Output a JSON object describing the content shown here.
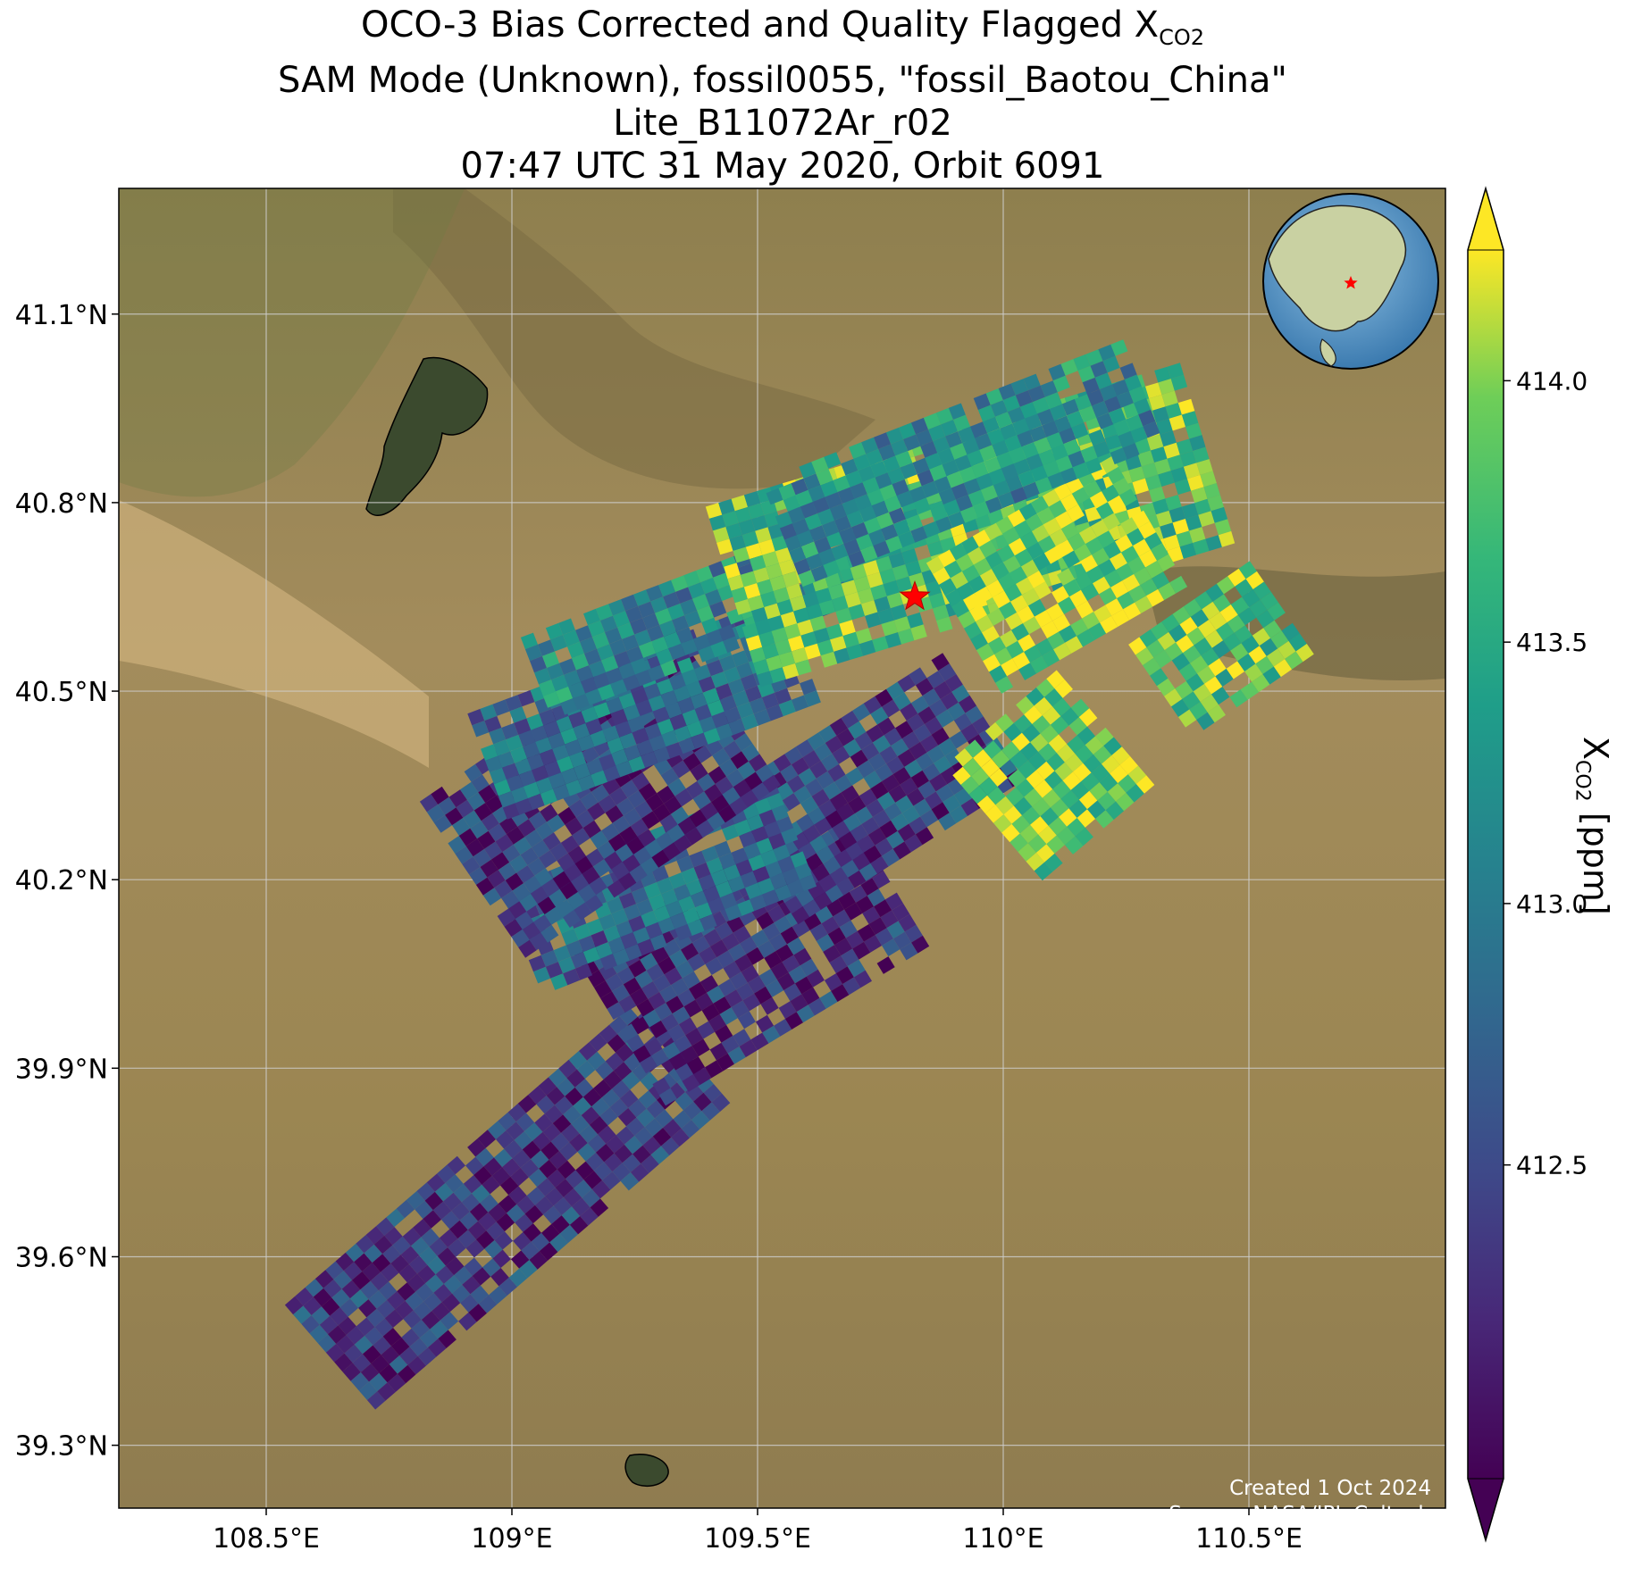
{
  "title": {
    "line1_prefix": "OCO-3 Bias Corrected and Quality Flagged X",
    "line1_sub": "CO2",
    "line2": "SAM Mode (Unknown), fossil0055, \"fossil_Baotou_China\"",
    "line3": "Lite_B11072Ar_r02",
    "line4": "07:47 UTC 31 May 2020, Orbit 6091"
  },
  "colorbar": {
    "label_prefix": "X",
    "label_sub": "CO2",
    "label_suffix": " [ppm]",
    "colormap": "viridis",
    "range": [
      411.9,
      414.25
    ],
    "extend": "both",
    "ticks": [
      {
        "value": 412.5,
        "label": "412.5"
      },
      {
        "value": 413.0,
        "label": "413.0"
      },
      {
        "value": 413.5,
        "label": "413.5"
      },
      {
        "value": 414.0,
        "label": "414.0"
      }
    ]
  },
  "credits": {
    "created": "Created 1 Oct 2024",
    "source": "Source: NASA/JPL-Caltech"
  },
  "chart_data": {
    "type": "heatmap",
    "description_of_marks": "swaths of XCO2 soundings over satellite imagery",
    "xlim": [
      108.2,
      110.9
    ],
    "ylim": [
      39.2,
      41.3
    ],
    "grid": true,
    "x_ticks": [
      {
        "value": 108.5,
        "label": "108.5°E"
      },
      {
        "value": 109.0,
        "label": "109°E"
      },
      {
        "value": 109.5,
        "label": "109.5°E"
      },
      {
        "value": 110.0,
        "label": "110°E"
      },
      {
        "value": 110.5,
        "label": "110.5°E"
      }
    ],
    "y_ticks": [
      {
        "value": 39.3,
        "label": "39.3°N"
      },
      {
        "value": 39.6,
        "label": "39.6°N"
      },
      {
        "value": 39.9,
        "label": "39.9°N"
      },
      {
        "value": 40.2,
        "label": "40.2°N"
      },
      {
        "value": 40.5,
        "label": "40.5°N"
      },
      {
        "value": 40.8,
        "label": "40.8°N"
      },
      {
        "value": 41.1,
        "label": "41.1°N"
      }
    ],
    "target": {
      "lon": 109.82,
      "lat": 40.65,
      "marker": "red star"
    },
    "inset_globe": {
      "marker": "red star",
      "position": "top-right"
    },
    "swaths": [
      {
        "start": [
          108.63,
          39.44
        ],
        "end": [
          109.37,
          39.94
        ],
        "half_width": 0.11,
        "mean": 412.35
      },
      {
        "start": [
          109.22,
          39.96
        ],
        "end": [
          109.77,
          40.22
        ],
        "half_width": 0.14,
        "mean": 412.3
      },
      {
        "start": [
          109.5,
          40.23
        ],
        "end": [
          109.98,
          40.47
        ],
        "half_width": 0.12,
        "mean": 412.45
      },
      {
        "start": [
          109.98,
          40.29
        ],
        "end": [
          110.22,
          40.45
        ],
        "half_width": 0.12,
        "mean": 413.9
      },
      {
        "start": [
          110.32,
          40.5
        ],
        "end": [
          110.58,
          40.64
        ],
        "half_width": 0.09,
        "mean": 413.8
      },
      {
        "start": [
          109.02,
          40.1
        ],
        "end": [
          109.6,
          40.28
        ],
        "half_width": 0.09,
        "mean": 412.75
      },
      {
        "start": [
          108.92,
          40.2
        ],
        "end": [
          109.45,
          40.48
        ],
        "half_width": 0.15,
        "mean": 412.3
      },
      {
        "start": [
          108.95,
          40.38
        ],
        "end": [
          109.6,
          40.57
        ],
        "half_width": 0.09,
        "mean": 412.85
      },
      {
        "start": [
          109.05,
          40.52
        ],
        "end": [
          109.72,
          40.72
        ],
        "half_width": 0.07,
        "mean": 413.15
      },
      {
        "start": [
          109.45,
          40.65
        ],
        "end": [
          110.42,
          40.88
        ],
        "half_width": 0.15,
        "mean": 413.75
      },
      {
        "start": [
          109.92,
          40.6
        ],
        "end": [
          110.32,
          40.78
        ],
        "half_width": 0.12,
        "mean": 413.95
      },
      {
        "start": [
          109.55,
          40.75
        ],
        "end": [
          110.3,
          40.98
        ],
        "half_width": 0.09,
        "mean": 413.2
      }
    ]
  }
}
